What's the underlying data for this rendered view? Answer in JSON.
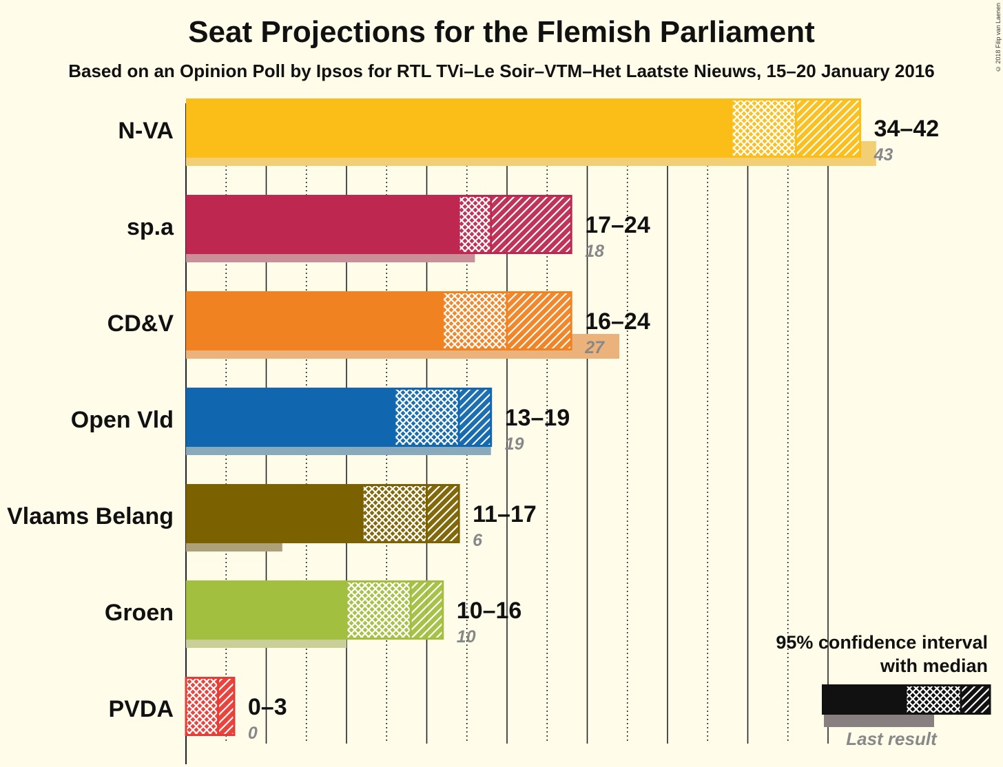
{
  "title": "Seat Projections for the Flemish Parliament",
  "subtitle": "Based on an Opinion Poll by Ipsos for RTL TVi–Le Soir–VTM–Het Laatste Nieuws, 15–20 January 2016",
  "credit": "© 2018 Filip van Laenen",
  "legend": {
    "title_line1": "95% confidence interval",
    "title_line2": "with median",
    "last_result_label": "Last result"
  },
  "chart_data": {
    "type": "bar",
    "orientation": "horizontal",
    "title": "Seat Projections for the Flemish Parliament",
    "subtitle": "Based on an Opinion Poll by Ipsos for RTL TVi–Le Soir–VTM–Het Laatste Nieuws, 15–20 January 2016",
    "x_range": [
      0,
      45
    ],
    "solid_gridlines": [
      5,
      10,
      15,
      20,
      25,
      30,
      35,
      40
    ],
    "dotted_gridlines": [
      2.5,
      7.5,
      12.5,
      17.5,
      22.5,
      27.5,
      32.5,
      37.5
    ],
    "parties": [
      {
        "name": "N-VA",
        "low": 34,
        "high": 42,
        "median": 38,
        "range_label": "34–42",
        "last": 43,
        "last_label": "43",
        "color": "#FBBD18",
        "last_color": "#F2CF75"
      },
      {
        "name": "sp.a",
        "low": 17,
        "high": 24,
        "median": 19,
        "range_label": "17–24",
        "last": 18,
        "last_label": "18",
        "color": "#BE2850",
        "last_color": "#C99099"
      },
      {
        "name": "CD&V",
        "low": 16,
        "high": 24,
        "median": 20,
        "range_label": "16–24",
        "last": 27,
        "last_label": "27",
        "color": "#F18221",
        "last_color": "#EBB27C"
      },
      {
        "name": "Open Vld",
        "low": 13,
        "high": 19,
        "median": 17,
        "range_label": "13–19",
        "last": 19,
        "last_label": "19",
        "color": "#1067AF",
        "last_color": "#89A9BD"
      },
      {
        "name": "Vlaams Belang",
        "low": 11,
        "high": 17,
        "median": 15,
        "range_label": "11–17",
        "last": 6,
        "last_label": "6",
        "color": "#7B6100",
        "last_color": "#ACA179"
      },
      {
        "name": "Groen",
        "low": 10,
        "high": 16,
        "median": 14,
        "range_label": "10–16",
        "last": 10,
        "last_label": "10",
        "color": "#A2BF3F",
        "last_color": "#CACF99"
      },
      {
        "name": "PVDA",
        "low": 0,
        "high": 3,
        "median": 2,
        "range_label": "0–3",
        "last": 0,
        "last_label": "0",
        "color": "#E93A35",
        "last_color": "#E8A39C"
      }
    ]
  }
}
